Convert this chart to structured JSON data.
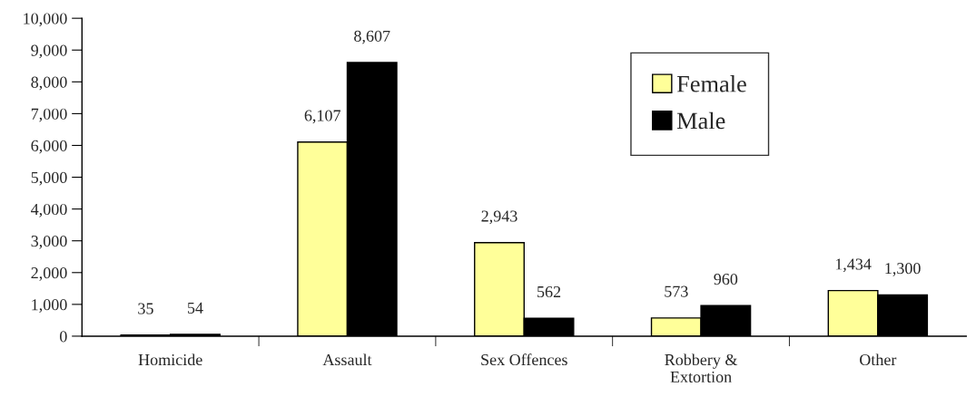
{
  "chart_data": {
    "type": "bar",
    "categories": [
      "Homicide",
      "Assault",
      "Sex Offences",
      "Robbery &\nExtortion",
      "Other"
    ],
    "series": [
      {
        "name": "Female",
        "color": "#ffff99",
        "values": [
          35,
          6107,
          2943,
          573,
          1434
        ],
        "value_labels": [
          "35",
          "6,107",
          "2,943",
          "573",
          "1,434"
        ]
      },
      {
        "name": "Male",
        "color": "#000000",
        "values": [
          54,
          8607,
          562,
          960,
          1300
        ],
        "value_labels": [
          "54",
          "8,607",
          "562",
          "960",
          "1,300"
        ]
      }
    ],
    "ylim": [
      0,
      10000
    ],
    "yticks": [
      {
        "value": 0,
        "label": "0"
      },
      {
        "value": 1000,
        "label": "1,000"
      },
      {
        "value": 2000,
        "label": "2,000"
      },
      {
        "value": 3000,
        "label": "3,000"
      },
      {
        "value": 4000,
        "label": "4,000"
      },
      {
        "value": 5000,
        "label": "5,000"
      },
      {
        "value": 6000,
        "label": "6,000"
      },
      {
        "value": 7000,
        "label": "7,000"
      },
      {
        "value": 8000,
        "label": "8,000"
      },
      {
        "value": 9000,
        "label": "9,000"
      },
      {
        "value": 10000,
        "label": "10,000"
      }
    ],
    "grid": false,
    "legend": "right"
  }
}
